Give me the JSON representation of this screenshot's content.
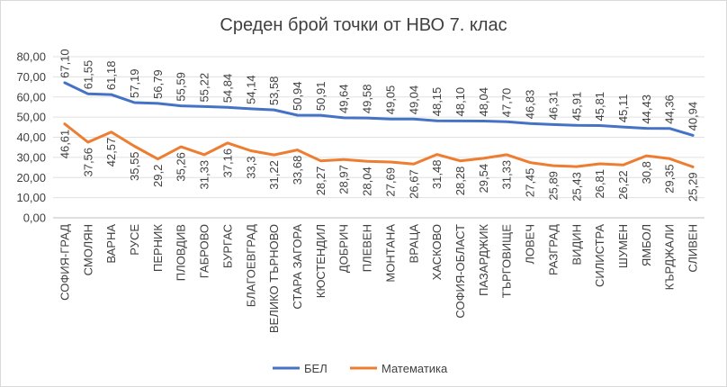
{
  "chart_data": {
    "type": "line",
    "title": "Среден брой точки от НВО 7. клас",
    "xlabel": "",
    "ylabel": "",
    "ylim": [
      0,
      80
    ],
    "yticks": [
      "0,00",
      "10,00",
      "20,00",
      "30,00",
      "40,00",
      "50,00",
      "60,00",
      "70,00",
      "80,00"
    ],
    "grid": true,
    "legend_position": "bottom",
    "categories": [
      "СОФИЯ-ГРАД",
      "СМОЛЯН",
      "ВАРНА",
      "РУСЕ",
      "ПЕРНИК",
      "ПЛОВДИВ",
      "ГАБРОВО",
      "БУРГАС",
      "БЛАГОЕВГРАД",
      "ВЕЛИКО ТЪРНОВО",
      "СТАРА ЗАГОРА",
      "КЮСТЕНДИЛ",
      "ДОБРИЧ",
      "ПЛЕВЕН",
      "МОНТАНА",
      "ВРАЦА",
      "ХАСКОВО",
      "СОФИЯ-ОБЛАСТ",
      "ПАЗАРДЖИК",
      "ТЪРГОВИЩЕ",
      "ЛОВЕЧ",
      "РАЗГРАД",
      "ВИДИН",
      "СИЛИСТРА",
      "ШУМЕН",
      "ЯМБОЛ",
      "КЪРДЖАЛИ",
      "СЛИВЕН"
    ],
    "series": [
      {
        "name": "БЕЛ",
        "color": "#4472c4",
        "values": [
          67.1,
          61.55,
          61.18,
          57.19,
          56.79,
          55.59,
          55.22,
          54.84,
          54.14,
          53.58,
          50.94,
          50.91,
          49.64,
          49.58,
          49.05,
          49.04,
          48.15,
          48.1,
          48.04,
          47.7,
          46.83,
          46.31,
          45.91,
          45.81,
          45.11,
          44.43,
          44.36,
          40.94
        ],
        "labels": [
          "67,10",
          "61,55",
          "61,18",
          "57,19",
          "56,79",
          "55,59",
          "55,22",
          "54,84",
          "54,14",
          "53,58",
          "50,94",
          "50,91",
          "49,64",
          "49,58",
          "49,05",
          "49,04",
          "48,15",
          "48,10",
          "48,04",
          "47,70",
          "46,83",
          "46,31",
          "45,91",
          "45,81",
          "45,11",
          "44,43",
          "44,36",
          "40,94"
        ]
      },
      {
        "name": "Математика",
        "color": "#ed7d31",
        "values": [
          46.61,
          37.56,
          42.57,
          35.55,
          29.2,
          35.26,
          31.33,
          37.16,
          33.3,
          31.22,
          33.68,
          28.27,
          28.97,
          28.04,
          27.69,
          26.67,
          31.48,
          28.28,
          29.54,
          31.33,
          27.45,
          25.89,
          25.43,
          26.81,
          26.22,
          30.8,
          29.35,
          25.29
        ],
        "labels": [
          "46,61",
          "37,56",
          "42,57",
          "35,55",
          "29,2",
          "35,26",
          "31,33",
          "37,16",
          "33,3",
          "31,22",
          "33,68",
          "28,27",
          "28,97",
          "28,04",
          "27,69",
          "26,67",
          "31,48",
          "28,28",
          "29,54",
          "31,33",
          "27,45",
          "25,89",
          "25,43",
          "26,81",
          "26,22",
          "30,8",
          "29,35",
          "25,29"
        ]
      }
    ]
  }
}
